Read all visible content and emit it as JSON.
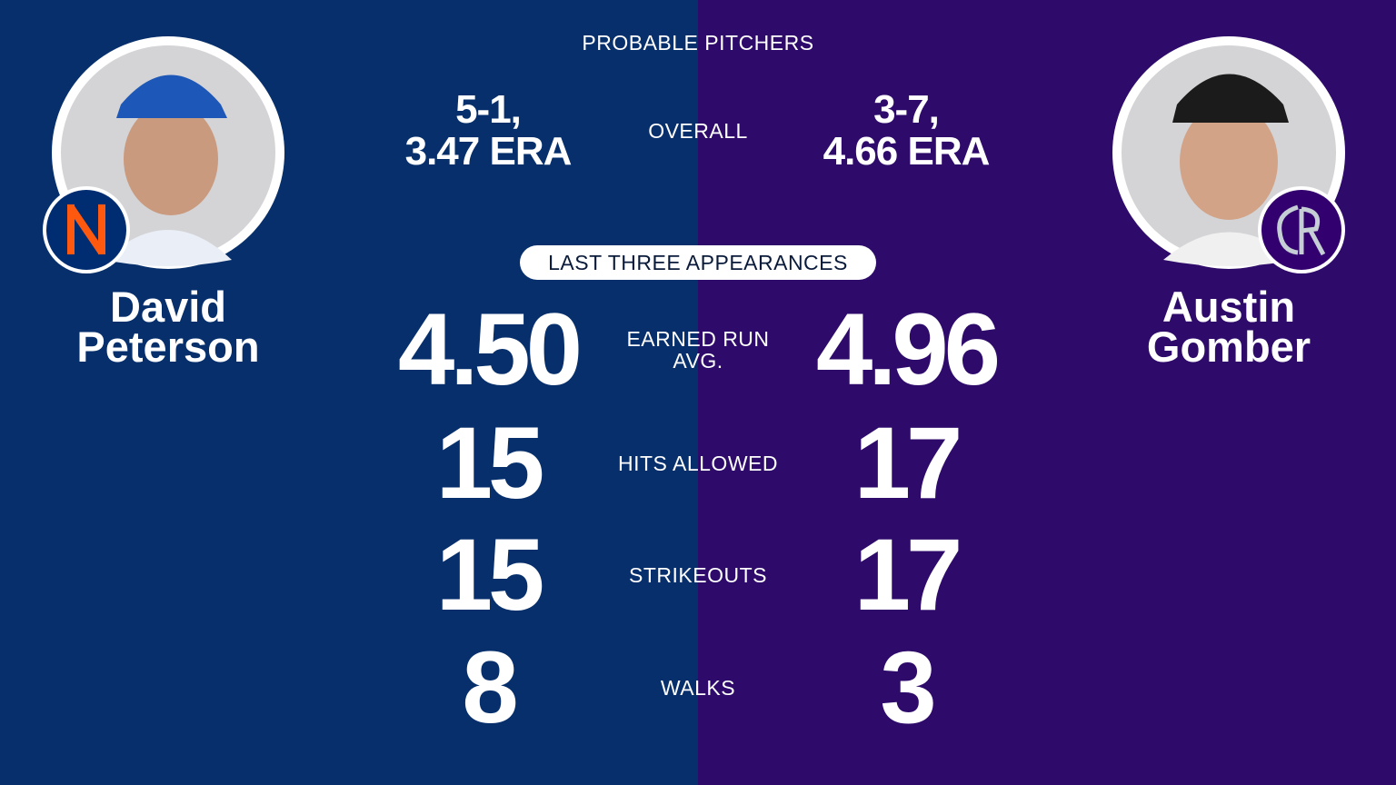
{
  "header": {
    "title": "PROBABLE PITCHERS"
  },
  "overall_label": "OVERALL",
  "pitchers": [
    {
      "name_lines": [
        "David",
        "Peterson"
      ],
      "overall": [
        "5-1,",
        "3.47 ERA"
      ]
    },
    {
      "name_lines": [
        "Austin",
        "Gomber"
      ],
      "overall": [
        "3-7,",
        "4.66 ERA"
      ]
    }
  ],
  "section": {
    "title": "LAST THREE APPEARANCES"
  },
  "stats": [
    {
      "label_lines": [
        "EARNED RUN",
        "AVG."
      ],
      "values": [
        "4.50",
        "4.96"
      ]
    },
    {
      "label_lines": [
        "HITS ALLOWED"
      ],
      "values": [
        15,
        17
      ]
    },
    {
      "label_lines": [
        "STRIKEOUTS"
      ],
      "values": [
        15,
        17
      ]
    },
    {
      "label_lines": [
        "WALKS"
      ],
      "values": [
        8,
        3
      ]
    }
  ]
}
